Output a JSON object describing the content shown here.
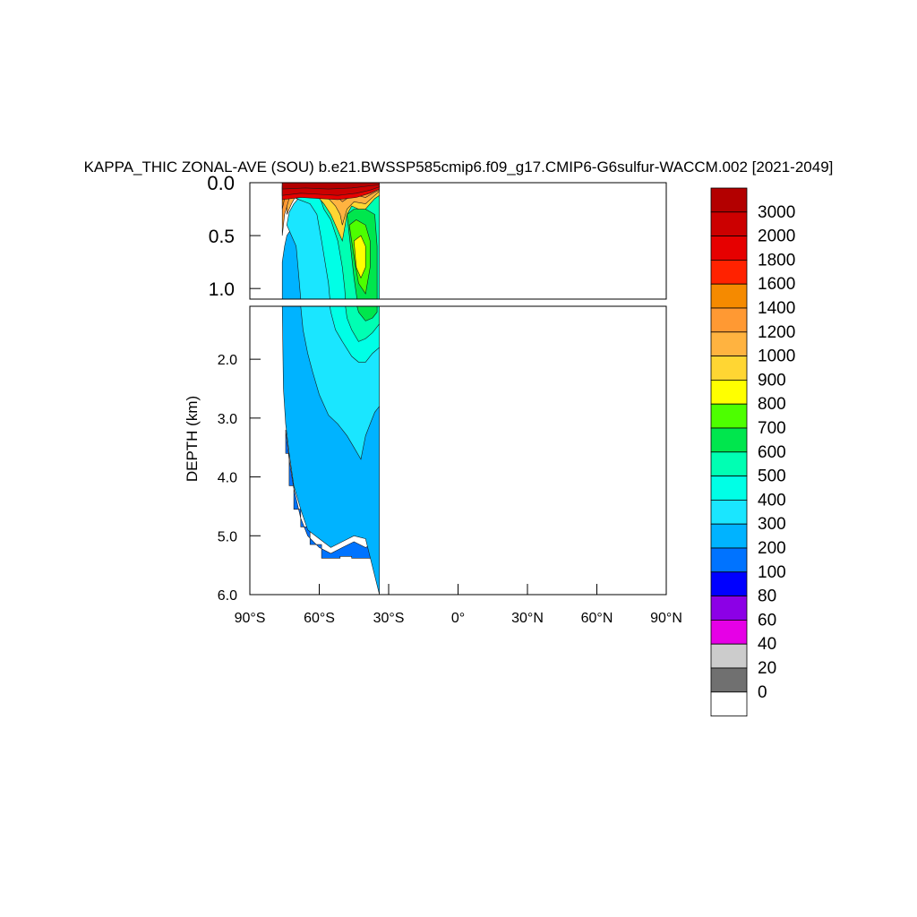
{
  "chart_data": {
    "type": "heatmap",
    "title": "KAPPA_THIC ZONAL-AVE (SOU) b.e21.BWSSP585cmip6.f09_g17.CMIP6-G6sulfur-WACCM.002 [2021-2049]",
    "ylabel": "DEPTH (km)",
    "xlabel": "",
    "xlim": [
      -90,
      90
    ],
    "x_ticks": [
      {
        "v": -90,
        "label": "90°S"
      },
      {
        "v": -60,
        "label": "60°S"
      },
      {
        "v": -30,
        "label": "30°S"
      },
      {
        "v": 0,
        "label": "0°"
      },
      {
        "v": 30,
        "label": "30°N"
      },
      {
        "v": 60,
        "label": "60°N"
      },
      {
        "v": 90,
        "label": "90°N"
      }
    ],
    "upper_panel": {
      "ylim": [
        0,
        1.1
      ],
      "ticks": [
        {
          "v": 0,
          "label": "0.0"
        },
        {
          "v": 0.5,
          "label": "0.5"
        },
        {
          "v": 1.0,
          "label": "1.0"
        }
      ]
    },
    "lower_panel": {
      "ylim": [
        1.1,
        6.0
      ],
      "ticks": [
        {
          "v": 2.0,
          "label": "2.0"
        },
        {
          "v": 3.0,
          "label": "3.0"
        },
        {
          "v": 4.0,
          "label": "4.0"
        },
        {
          "v": 5.0,
          "label": "5.0"
        },
        {
          "v": 6.0,
          "label": "6.0"
        }
      ]
    },
    "colorbar": {
      "labels": [
        "3000",
        "2000",
        "1800",
        "1600",
        "1400",
        "1200",
        "1000",
        "900",
        "800",
        "700",
        "600",
        "500",
        "400",
        "300",
        "200",
        "100",
        "80",
        "60",
        "40",
        "20",
        "0"
      ],
      "colors": [
        "#b30000",
        "#cc0000",
        "#e60000",
        "#ff2200",
        "#f58a00",
        "#ff9933",
        "#ffb340",
        "#ffd633",
        "#ffff00",
        "#4dff00",
        "#00e64d",
        "#00ffb3",
        "#00ffe6",
        "#1ae6ff",
        "#00b3ff",
        "#0073ff",
        "#0000ff",
        "#8c00e6",
        "#e600e6",
        "#cccccc",
        "#707070",
        "#ffffff"
      ]
    },
    "regions": [
      {
        "name": "region-deep-200",
        "level": 200,
        "color": "#0073ff",
        "pts": [
          [
            -74.5,
            3.2
          ],
          [
            -73,
            3.7
          ],
          [
            -71,
            4.2
          ],
          [
            -68,
            4.7
          ],
          [
            -65,
            5.0
          ],
          [
            -60,
            5.2
          ],
          [
            -55,
            5.3
          ],
          [
            -50,
            5.2
          ],
          [
            -45,
            5.1
          ],
          [
            -40,
            5.2
          ],
          [
            -35,
            5.1
          ],
          [
            -34,
            5.2
          ],
          [
            -34,
            5.38
          ],
          [
            -46,
            5.38
          ],
          [
            -46,
            5.35
          ],
          [
            -51,
            5.35
          ],
          [
            -51,
            5.38
          ],
          [
            -59,
            5.38
          ],
          [
            -59,
            5.15
          ],
          [
            -64,
            5.15
          ],
          [
            -64,
            4.85
          ],
          [
            -68,
            4.85
          ],
          [
            -68,
            4.55
          ],
          [
            -71,
            4.55
          ],
          [
            -71,
            4.15
          ],
          [
            -73,
            4.15
          ],
          [
            -73,
            3.6
          ],
          [
            -74.5,
            3.6
          ]
        ]
      },
      {
        "name": "region-300",
        "level": 300,
        "color": "#00b3ff",
        "pts": [
          [
            -76,
            1.1
          ],
          [
            -76,
            0.75
          ],
          [
            -75,
            0.6
          ],
          [
            -74,
            0.5
          ],
          [
            -72.5,
            0.45
          ],
          [
            -71,
            0.4
          ],
          [
            -70,
            0.25
          ],
          [
            -34,
            0.25
          ],
          [
            -34,
            6.0
          ],
          [
            -40,
            5.05
          ],
          [
            -45,
            5.0
          ],
          [
            -50,
            5.1
          ],
          [
            -55,
            5.2
          ],
          [
            -60,
            5.05
          ],
          [
            -65,
            4.9
          ],
          [
            -68,
            4.55
          ],
          [
            -71,
            4.15
          ],
          [
            -73,
            3.6
          ],
          [
            -74.5,
            3.1
          ],
          [
            -75.5,
            2.5
          ],
          [
            -76,
            1.1
          ]
        ]
      },
      {
        "name": "region-400",
        "level": 400,
        "color": "#1ae6ff",
        "pts": [
          [
            -74,
            0.4
          ],
          [
            -73,
            0.28
          ],
          [
            -71,
            0.2
          ],
          [
            -69,
            0.15
          ],
          [
            -34,
            0.15
          ],
          [
            -34,
            2.8
          ],
          [
            -36,
            2.9
          ],
          [
            -38,
            3.1
          ],
          [
            -40,
            3.3
          ],
          [
            -42,
            3.7
          ],
          [
            -45,
            3.5
          ],
          [
            -48,
            3.3
          ],
          [
            -52,
            3.1
          ],
          [
            -56,
            2.95
          ],
          [
            -60,
            2.6
          ],
          [
            -63,
            2.2
          ],
          [
            -65,
            1.9
          ],
          [
            -67,
            1.5
          ],
          [
            -68,
            1.1
          ],
          [
            -69,
            0.85
          ],
          [
            -70,
            0.6
          ],
          [
            -72,
            0.5
          ]
        ]
      },
      {
        "name": "region-500",
        "level": 500,
        "color": "#00ffe6",
        "pts": [
          [
            -70,
            0.15
          ],
          [
            -67,
            0.12
          ],
          [
            -34,
            0.12
          ],
          [
            -34,
            1.8
          ],
          [
            -37,
            1.9
          ],
          [
            -40,
            2.05
          ],
          [
            -43,
            2.05
          ],
          [
            -46,
            1.95
          ],
          [
            -50,
            1.7
          ],
          [
            -53,
            1.5
          ],
          [
            -55,
            1.2
          ],
          [
            -56,
            0.95
          ],
          [
            -59,
            0.55
          ],
          [
            -61,
            0.3
          ],
          [
            -64,
            0.2
          ]
        ]
      },
      {
        "name": "region-600",
        "level": 600,
        "color": "#00ffb3",
        "pts": [
          [
            -60,
            0.12
          ],
          [
            -34,
            0.12
          ],
          [
            -34,
            1.4
          ],
          [
            -37,
            1.55
          ],
          [
            -40,
            1.65
          ],
          [
            -43,
            1.7
          ],
          [
            -46,
            1.5
          ],
          [
            -48,
            1.3
          ],
          [
            -49,
            1.0
          ],
          [
            -50,
            0.8
          ],
          [
            -52,
            0.55
          ],
          [
            -55,
            0.35
          ],
          [
            -58,
            0.25
          ]
        ]
      },
      {
        "name": "region-700",
        "level": 700,
        "color": "#00e64d",
        "pts": [
          [
            -48,
            0.3
          ],
          [
            -45,
            0.25
          ],
          [
            -40,
            0.25
          ],
          [
            -36,
            0.3
          ],
          [
            -35,
            0.6
          ],
          [
            -35,
            1.2
          ],
          [
            -37,
            1.3
          ],
          [
            -40,
            1.35
          ],
          [
            -43,
            1.2
          ],
          [
            -45,
            0.9
          ],
          [
            -46,
            0.7
          ],
          [
            -47,
            0.5
          ]
        ]
      },
      {
        "name": "region-800",
        "level": 800,
        "color": "#4dff00",
        "pts": [
          [
            -47,
            0.4
          ],
          [
            -44,
            0.35
          ],
          [
            -40,
            0.4
          ],
          [
            -38,
            0.55
          ],
          [
            -38,
            0.8
          ],
          [
            -40,
            1.05
          ],
          [
            -43,
            0.95
          ],
          [
            -45,
            0.7
          ]
        ]
      },
      {
        "name": "region-900",
        "level": 900,
        "color": "#ffff00",
        "pts": [
          [
            -45,
            0.55
          ],
          [
            -42,
            0.5
          ],
          [
            -40,
            0.6
          ],
          [
            -40,
            0.8
          ],
          [
            -42,
            0.9
          ],
          [
            -44,
            0.8
          ]
        ]
      },
      {
        "name": "region-1000",
        "level": 1000,
        "color": "#ffd633",
        "pts": [
          [
            -66,
            0.08
          ],
          [
            -62,
            0.1
          ],
          [
            -58,
            0.2
          ],
          [
            -55,
            0.3
          ],
          [
            -52,
            0.45
          ],
          [
            -50,
            0.55
          ],
          [
            -48,
            0.3
          ],
          [
            -46,
            0.22
          ],
          [
            -43,
            0.25
          ],
          [
            -40,
            0.25
          ],
          [
            -38,
            0.2
          ],
          [
            -36,
            0.15
          ],
          [
            -34,
            0.12
          ],
          [
            -34,
            0.06
          ],
          [
            -66,
            0.06
          ]
        ]
      },
      {
        "name": "region-1200",
        "level": 1200,
        "color": "#ffb340",
        "pts": [
          [
            -74,
            0.3
          ],
          [
            -72,
            0.2
          ],
          [
            -70,
            0.12
          ],
          [
            -66,
            0.08
          ],
          [
            -60,
            0.09
          ],
          [
            -56,
            0.15
          ],
          [
            -53,
            0.22
          ],
          [
            -51,
            0.3
          ],
          [
            -50,
            0.4
          ],
          [
            -48,
            0.25
          ],
          [
            -45,
            0.18
          ],
          [
            -40,
            0.2
          ],
          [
            -36,
            0.12
          ],
          [
            -34,
            0.08
          ],
          [
            -34,
            0.04
          ],
          [
            -74,
            0.04
          ]
        ]
      },
      {
        "name": "region-1400",
        "level": 1400,
        "color": "#ff9933",
        "pts": [
          [
            -76,
            0.5
          ],
          [
            -75,
            0.3
          ],
          [
            -73,
            0.15
          ],
          [
            -70,
            0.1
          ],
          [
            -66,
            0.06
          ],
          [
            -60,
            0.07
          ],
          [
            -55,
            0.1
          ],
          [
            -52,
            0.14
          ],
          [
            -50,
            0.18
          ],
          [
            -48,
            0.15
          ],
          [
            -44,
            0.12
          ],
          [
            -40,
            0.14
          ],
          [
            -36,
            0.09
          ],
          [
            -34,
            0.07
          ],
          [
            -34,
            0.04
          ],
          [
            -76,
            0.04
          ]
        ]
      },
      {
        "name": "region-1600",
        "level": 1600,
        "color": "#f58a00",
        "pts": [
          [
            -76,
            0.25
          ],
          [
            -75,
            0.15
          ],
          [
            -72,
            0.1
          ],
          [
            -66,
            0.06
          ],
          [
            -58,
            0.06
          ],
          [
            -52,
            0.09
          ],
          [
            -48,
            0.1
          ],
          [
            -42,
            0.09
          ],
          [
            -36,
            0.07
          ],
          [
            -34,
            0.04
          ],
          [
            -76,
            0.04
          ]
        ]
      },
      {
        "name": "region-1800",
        "level": 1800,
        "color": "#ff2200",
        "pts": [
          [
            -76,
            0.12
          ],
          [
            -72,
            0.08
          ],
          [
            -66,
            0.05
          ],
          [
            -56,
            0.05
          ],
          [
            -48,
            0.07
          ],
          [
            -40,
            0.06
          ],
          [
            -34,
            0.04
          ],
          [
            -34,
            0.02
          ],
          [
            -76,
            0.02
          ]
        ]
      },
      {
        "name": "region-2000",
        "level": 2000,
        "color": "#e60000",
        "pts": [
          [
            -76,
            0.16
          ],
          [
            -68,
            0.14
          ],
          [
            -60,
            0.15
          ],
          [
            -52,
            0.16
          ],
          [
            -44,
            0.14
          ],
          [
            -38,
            0.1
          ],
          [
            -34,
            0.06
          ],
          [
            -34,
            0
          ],
          [
            -76,
            0
          ]
        ]
      },
      {
        "name": "region-3000",
        "level": 3000,
        "color": "#cc0000",
        "pts": [
          [
            -76,
            0.12
          ],
          [
            -68,
            0.1
          ],
          [
            -60,
            0.11
          ],
          [
            -52,
            0.12
          ],
          [
            -44,
            0.1
          ],
          [
            -38,
            0.07
          ],
          [
            -34,
            0.04
          ],
          [
            -34,
            0
          ],
          [
            -76,
            0
          ]
        ]
      },
      {
        "name": "region-above-3000",
        "level": 3001,
        "color": "#b30000",
        "pts": [
          [
            -76,
            0.06
          ],
          [
            -66,
            0.05
          ],
          [
            -56,
            0.06
          ],
          [
            -46,
            0.05
          ],
          [
            -38,
            0.03
          ],
          [
            -34,
            0.02
          ],
          [
            -34,
            0
          ],
          [
            -76,
            0
          ]
        ]
      }
    ]
  }
}
